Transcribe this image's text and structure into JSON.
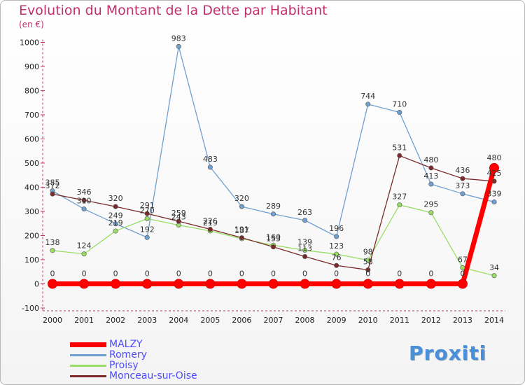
{
  "chart_data": {
    "type": "line",
    "title": "Evolution du Montant de la Dette par Habitant",
    "subtitle": "(en €)",
    "x": [
      "2000",
      "2001",
      "2002",
      "2003",
      "2004",
      "2005",
      "2006",
      "2007",
      "2008",
      "2009",
      "2010",
      "2011",
      "2012",
      "2013",
      "2014"
    ],
    "ylim": [
      -100,
      1000
    ],
    "yticks": [
      -100,
      0,
      100,
      200,
      300,
      400,
      500,
      600,
      700,
      800,
      900,
      1000
    ],
    "grid": false,
    "legend_position": "bottom-left",
    "series": [
      {
        "name": "MALZY",
        "color": "#ff0000",
        "values": [
          0,
          0,
          0,
          0,
          0,
          0,
          0,
          0,
          0,
          0,
          0,
          0,
          0,
          0,
          480
        ]
      },
      {
        "name": "Romery",
        "color": "#6fa0d0",
        "values": [
          385,
          310,
          249,
          192,
          983,
          483,
          320,
          289,
          263,
          196,
          744,
          710,
          413,
          373,
          339
        ]
      },
      {
        "name": "Proisy",
        "color": "#99dd66",
        "values": [
          138,
          124,
          219,
          270,
          243,
          219,
          187,
          160,
          139,
          123,
          98,
          327,
          295,
          67,
          34
        ]
      },
      {
        "name": "Monceau-sur-Oise",
        "color": "#7a2a2a",
        "values": [
          372,
          346,
          320,
          291,
          259,
          226,
          191,
          153,
          113,
          76,
          58,
          531,
          480,
          436,
          425
        ]
      }
    ]
  },
  "logo": {
    "text": "Proxiti"
  }
}
